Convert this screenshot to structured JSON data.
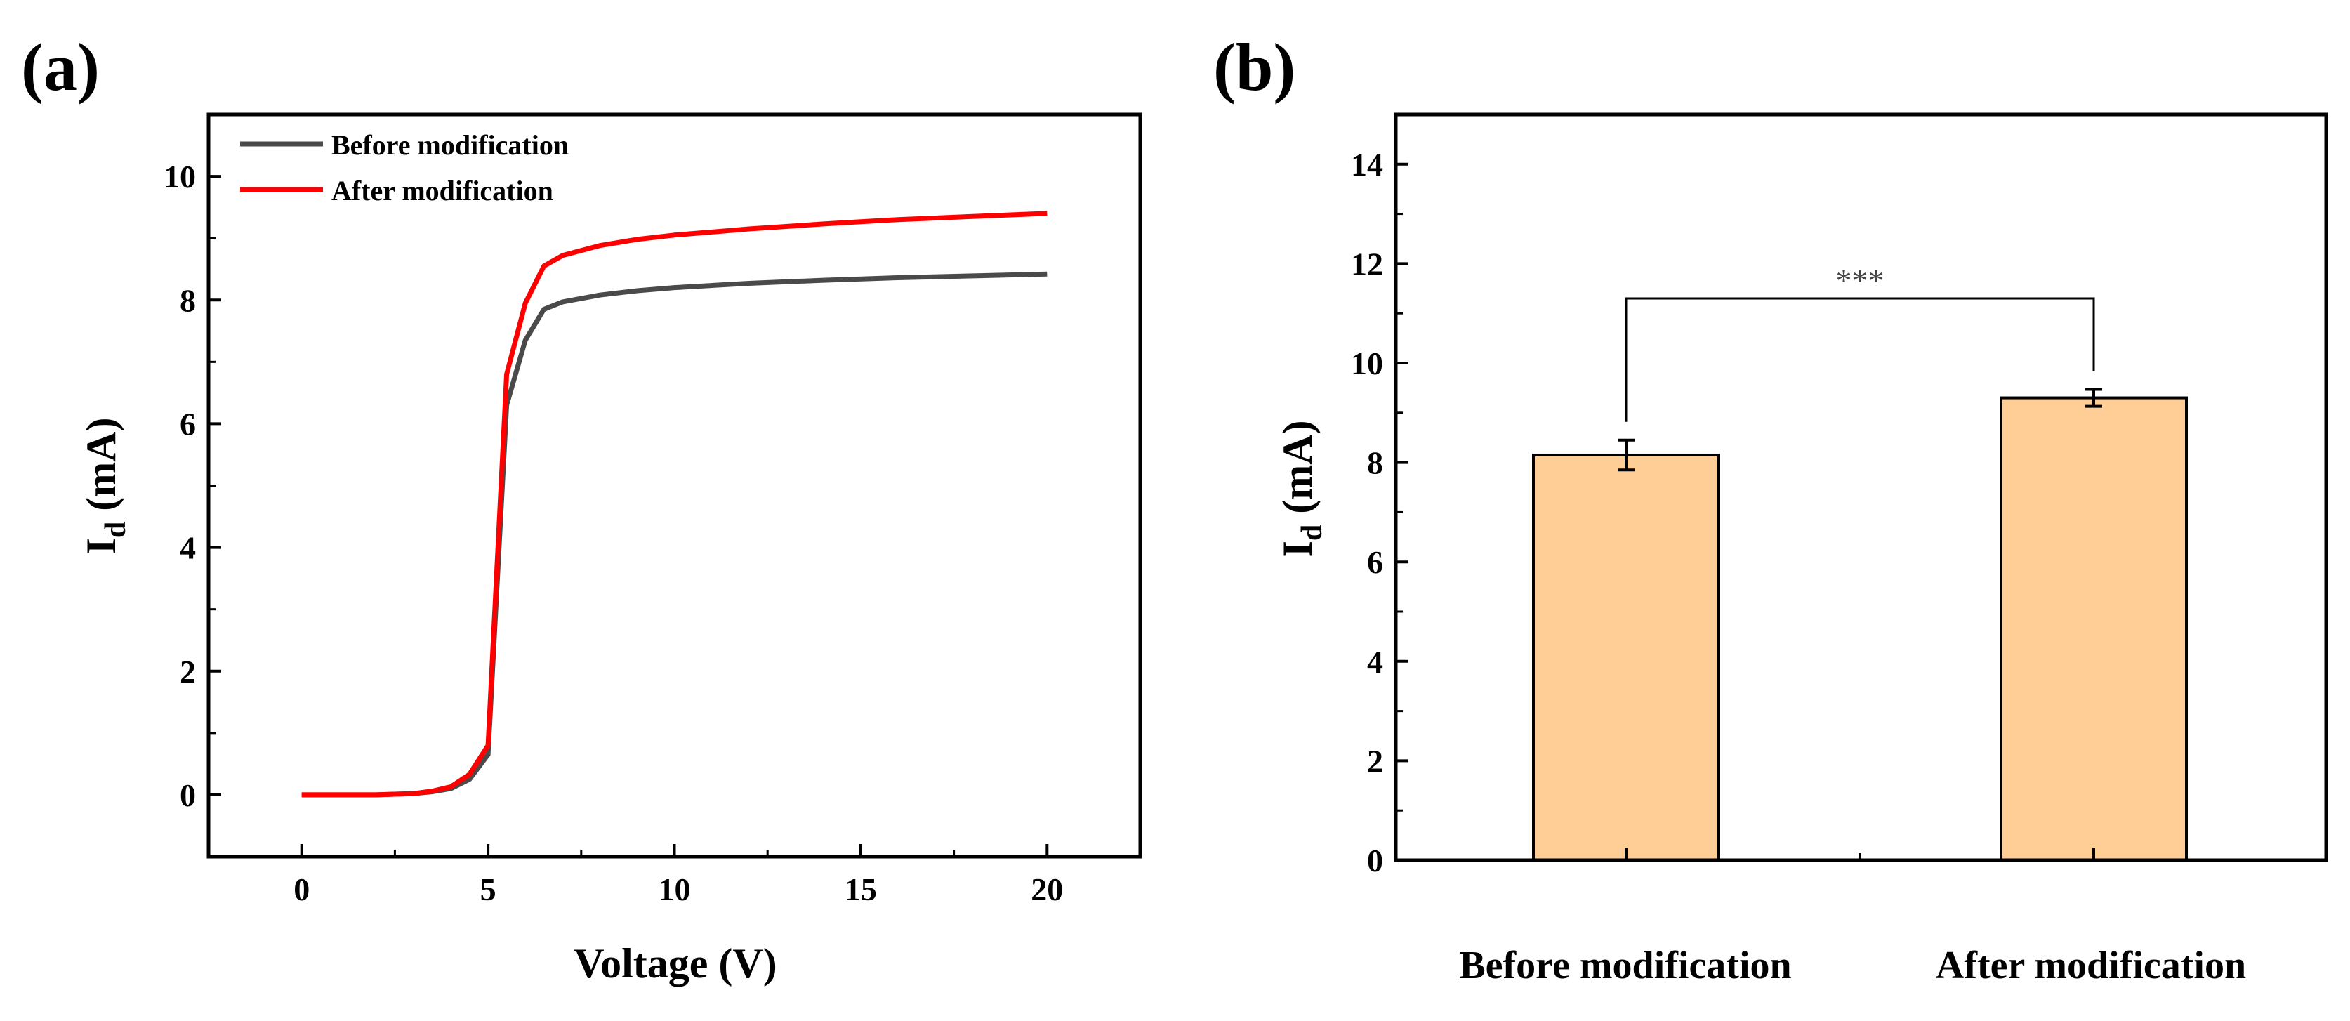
{
  "colors": {
    "before_line": "#4a4a4a",
    "after_line": "#ff0000",
    "bar_fill": "#ffce96",
    "axis": "#000000"
  },
  "chart_data": [
    {
      "panel_label": "(a)",
      "type": "line",
      "xlabel": "Voltage (V)",
      "ylabel_main": "I",
      "ylabel_sub": "d",
      "ylabel_unit": " (mA)",
      "xlim": [
        -2.5,
        22.5
      ],
      "ylim": [
        -1,
        11
      ],
      "xticks": [
        0,
        5,
        10,
        15,
        20
      ],
      "yticks": [
        0,
        2,
        4,
        6,
        8,
        10
      ],
      "legend_position": "top-left",
      "series": [
        {
          "name": "Before modification",
          "color": "#4a4a4a",
          "x": [
            0,
            1,
            2,
            2.5,
            3,
            3.5,
            4,
            4.5,
            5,
            5.5,
            6,
            6.5,
            7,
            8,
            9,
            10,
            12,
            14,
            16,
            18,
            20
          ],
          "y": [
            0,
            0,
            0,
            0.01,
            0.02,
            0.05,
            0.1,
            0.25,
            0.65,
            6.3,
            7.35,
            7.85,
            7.97,
            8.08,
            8.15,
            8.2,
            8.27,
            8.32,
            8.36,
            8.39,
            8.42
          ]
        },
        {
          "name": "After modification",
          "color": "#ff0000",
          "x": [
            0,
            1,
            2,
            2.5,
            3,
            3.5,
            4,
            4.5,
            5,
            5.5,
            6,
            6.5,
            7,
            8,
            9,
            10,
            12,
            14,
            16,
            18,
            20
          ],
          "y": [
            0,
            0,
            0,
            0.01,
            0.02,
            0.06,
            0.13,
            0.33,
            0.8,
            6.8,
            7.95,
            8.55,
            8.72,
            8.88,
            8.98,
            9.05,
            9.15,
            9.23,
            9.3,
            9.35,
            9.4
          ]
        }
      ]
    },
    {
      "panel_label": "(b)",
      "type": "bar",
      "xlabel": "",
      "ylabel_main": "I",
      "ylabel_sub": "d",
      "ylabel_unit": " (mA)",
      "ylim": [
        0,
        15
      ],
      "yticks": [
        0,
        2,
        4,
        6,
        8,
        10,
        12,
        14
      ],
      "categories": [
        "Before modification",
        "After modification"
      ],
      "values": [
        8.15,
        9.3
      ],
      "errors": [
        0.3,
        0.17
      ],
      "significance": {
        "label": "***",
        "between": [
          0,
          1
        ],
        "y": 11.3
      }
    }
  ]
}
